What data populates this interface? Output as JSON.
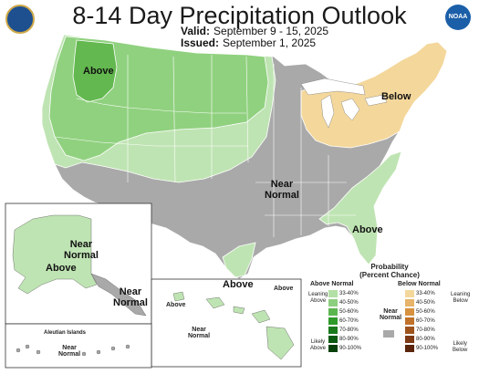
{
  "header": {
    "title": "8-14 Day Precipitation Outlook",
    "valid_label": "Valid:",
    "valid_value": "September 9 - 15, 2025",
    "issued_label": "Issued:",
    "issued_value": "September 1, 2025"
  },
  "logos": {
    "left": "NOAA CPC seal",
    "right_text": "NOAA"
  },
  "map_labels": {
    "above_nw": "Above",
    "below_ne": "Below",
    "near_normal_center": [
      "Near",
      "Normal"
    ],
    "above_se": "Above",
    "above_south": "Above",
    "alaska_near_normal": [
      "Near",
      "Normal"
    ],
    "alaska_above": "Above",
    "alaska_se_near_normal": [
      "Near",
      "Normal"
    ],
    "hawaii_above_left": "Above",
    "hawaii_above_right": "Above",
    "hawaii_near_normal": [
      "Near",
      "Normal"
    ],
    "aleutian_title": "Aleutian Islands",
    "aleutian_near_normal": [
      "Near",
      "Normal"
    ]
  },
  "legend": {
    "title": [
      "Probability",
      "(Percent Chance)"
    ],
    "above_header": "Above Normal",
    "below_header": "Below Normal",
    "near_header": [
      "Near",
      "Normal"
    ],
    "leaning_above": [
      "Leaning",
      "Above"
    ],
    "likely_above": [
      "Likely",
      "Above"
    ],
    "leaning_below": [
      "Leaning",
      "Below"
    ],
    "likely_below": [
      "Likely",
      "Below"
    ],
    "bins": [
      "33-40%",
      "40-50%",
      "50-60%",
      "60-70%",
      "70-80%",
      "80-90%",
      "90-100%"
    ],
    "above_colors": [
      "#b3e0a6",
      "#8ccf7e",
      "#5cb64f",
      "#2f9a2a",
      "#197a1c",
      "#0b5a12",
      "#06400b"
    ],
    "below_colors": [
      "#f4d79b",
      "#e6b46a",
      "#d7923f",
      "#c0722a",
      "#9e531d",
      "#7d3a14",
      "#5a250c"
    ],
    "near_color": "#a9a9a9"
  },
  "colors": {
    "above_33_40": "#bfe4b3",
    "above_40_50": "#90d17f",
    "above_50_60": "#63b84f",
    "below_33_40": "#f4d79b",
    "near_normal": "#a9a9a9"
  }
}
